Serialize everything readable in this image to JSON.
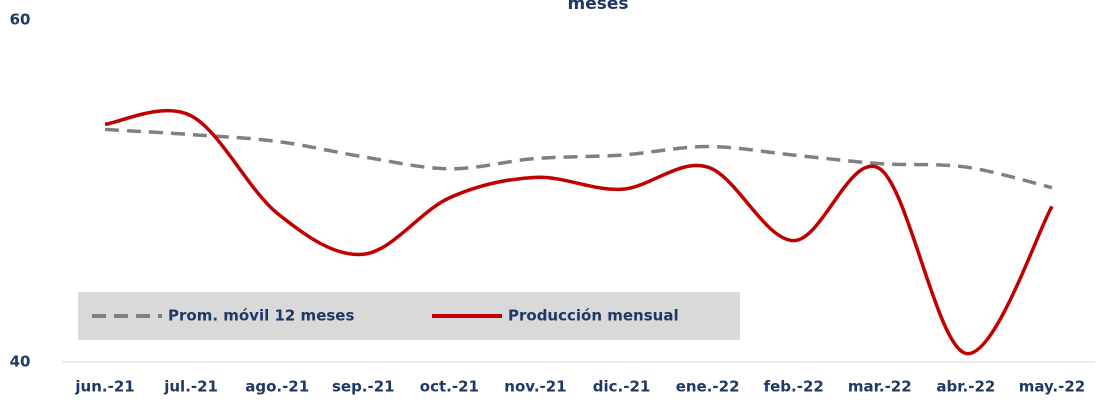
{
  "chart_data": {
    "type": "line",
    "title": "meses",
    "categories": [
      "jun.-21",
      "jul.-21",
      "ago.-21",
      "sep.-21",
      "oct.-21",
      "nov.-21",
      "dic.-21",
      "ene.-22",
      "feb.-22",
      "mar.-22",
      "abr.-22",
      "may.-22"
    ],
    "series": [
      {
        "name": "Prom. móvil 12 meses",
        "color": "#808080",
        "dash": true,
        "values": [
          53.6,
          53.3,
          52.9,
          52.0,
          51.3,
          51.9,
          52.1,
          52.6,
          52.1,
          51.6,
          51.4,
          50.2
        ]
      },
      {
        "name": "Producción mensual",
        "color": "#c00000",
        "dash": false,
        "values": [
          53.9,
          54.4,
          48.7,
          46.3,
          49.6,
          50.8,
          50.1,
          51.4,
          47.1,
          51.3,
          40.5,
          49.1
        ]
      }
    ],
    "ylim": [
      40,
      60
    ],
    "yticks": [
      40,
      60
    ]
  }
}
